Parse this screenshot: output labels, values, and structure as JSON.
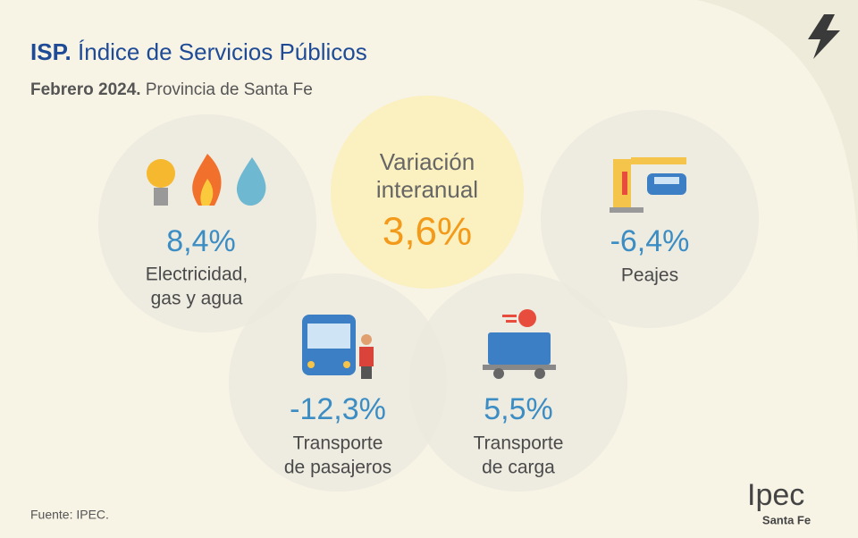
{
  "header": {
    "title_bold": "ISP.",
    "title": "Índice de Servicios Públicos",
    "subtitle_bold": "Febrero 2024.",
    "subtitle": "Provincia de Santa Fe"
  },
  "center": {
    "label_lines": [
      "Variación",
      "interanual"
    ],
    "value": "3,6%"
  },
  "items": [
    {
      "value": "8,4%",
      "label_lines": [
        "Electricidad,",
        "gas y agua"
      ]
    },
    {
      "value": "-6,4%",
      "label_lines": [
        "Peajes"
      ]
    },
    {
      "value": "-12,3%",
      "label_lines": [
        "Transporte",
        "de pasajeros"
      ]
    },
    {
      "value": "5,5%",
      "label_lines": [
        "Transporte",
        "de carga"
      ]
    }
  ],
  "footer": {
    "source": "Fuente: IPEC.",
    "logo": "Ipec",
    "logo_sub": "Santa Fe"
  }
}
